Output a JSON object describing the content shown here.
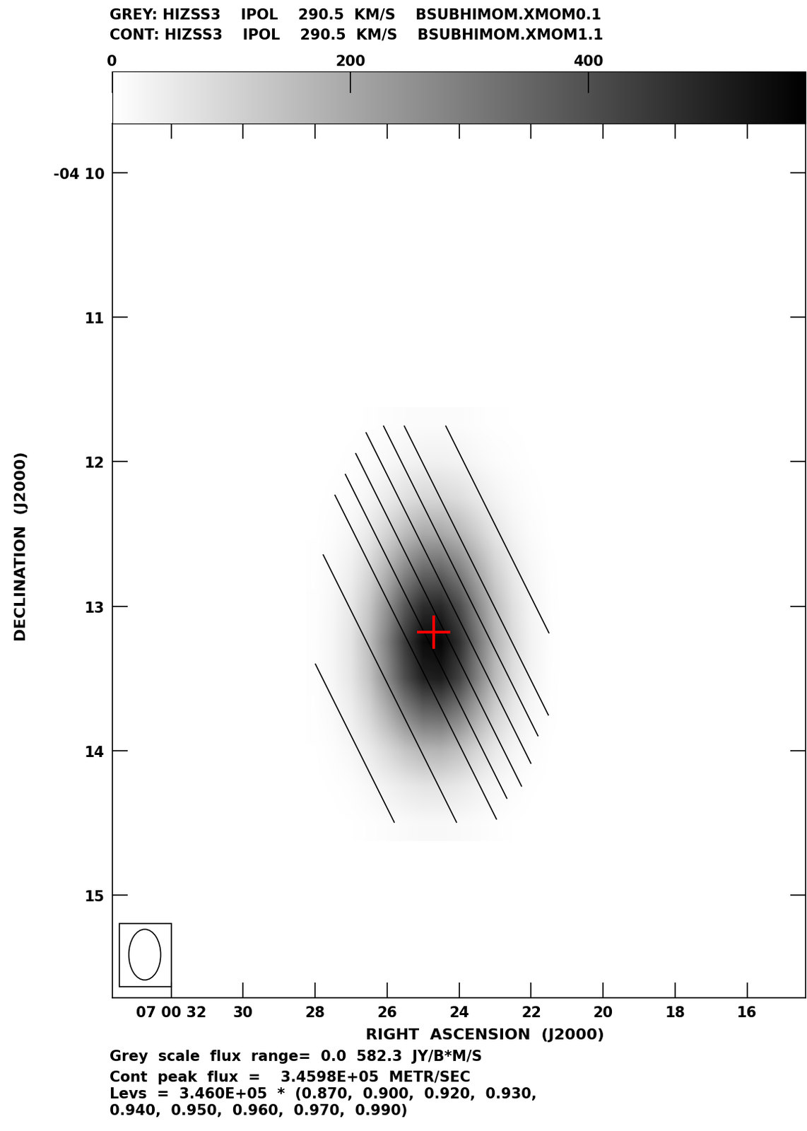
{
  "chart_data": {
    "type": "image_contour",
    "header": [
      "GREY: HIZSS3    IPOL    290.5  KM/S    BSUBHIMOM.XMOM0.1",
      "CONT: HIZSS3    IPOL    290.5  KM/S    BSUBHIMOM.XMOM1.1"
    ],
    "xlabel": "RIGHT  ASCENSION  (J2000)",
    "ylabel": "DECLINATION  (J2000)",
    "xlim": [
      33.64,
      14.38
    ],
    "ylim": [
      15.71,
      9.66
    ],
    "xticks": [
      {
        "value": 32,
        "label": "07 00 32"
      },
      30,
      28,
      26,
      24,
      22,
      20,
      18,
      16
    ],
    "yticks": [
      {
        "value": 10,
        "label": "-04 10"
      },
      11,
      12,
      13,
      14,
      15
    ],
    "grid": false,
    "x": [
      28,
      27.5,
      27,
      26.5,
      26,
      25.5,
      25,
      24.5,
      24,
      23.5,
      23,
      22.5,
      22,
      21.5,
      21
    ],
    "y": [
      11.75,
      12,
      12.25,
      12.5,
      12.75,
      13,
      13.25,
      13.5,
      13.75,
      14,
      14.25,
      14.5
    ],
    "grey": {
      "color": "gray_r",
      "cells": [
        [
          0,
          0,
          1,
          3,
          6,
          9,
          11,
          11,
          10,
          6,
          3,
          2,
          1,
          0,
          0
        ],
        [
          0,
          1,
          4,
          9,
          17,
          27,
          33,
          34,
          29,
          19,
          10,
          5,
          2,
          0,
          0
        ],
        [
          1,
          4,
          10,
          24,
          46,
          71,
          89,
          91,
          76,
          51,
          28,
          13,
          5,
          1,
          0
        ],
        [
          2,
          8,
          22,
          53,
          102,
          156,
          195,
          199,
          166,
          112,
          61,
          28,
          10,
          2,
          0
        ],
        [
          4,
          14,
          39,
          92,
          177,
          272,
          340,
          347,
          290,
          195,
          106,
          50,
          18,
          4,
          0
        ],
        [
          5,
          20,
          55,
          130,
          249,
          384,
          479,
          489,
          409,
          274,
          150,
          70,
          25,
          5,
          0
        ],
        [
          6,
          23,
          64,
          151,
          290,
          447,
          557,
          568,
          476,
          319,
          174,
          81,
          29,
          6,
          0
        ],
        [
          5,
          21,
          58,
          137,
          264,
          406,
          507,
          517,
          433,
          290,
          158,
          74,
          26,
          5,
          0
        ],
        [
          4,
          14,
          39,
          92,
          177,
          272,
          340,
          347,
          290,
          195,
          106,
          50,
          18,
          4,
          0
        ],
        [
          2,
          7,
          19,
          45,
          87,
          134,
          167,
          171,
          143,
          96,
          52,
          24,
          9,
          2,
          0
        ],
        [
          1,
          3,
          7,
          17,
          32,
          49,
          61,
          63,
          52,
          35,
          19,
          9,
          3,
          1,
          0
        ],
        [
          0,
          1,
          2,
          5,
          9,
          13,
          17,
          17,
          14,
          10,
          5,
          2,
          1,
          0,
          0
        ]
      ],
      "colorbar": {
        "range": [
          0,
          582.3
        ],
        "ticks": [
          0,
          200,
          400
        ]
      }
    },
    "contours": {
      "color": "black",
      "levels": [
        301020,
        311400,
        318320,
        321780,
        325240,
        328700,
        332160,
        335620,
        342540
      ],
      "cells": [
        [
          null,
          null,
          null,
          329800,
          332800,
          335800,
          338800,
          341800,
          344800,
          345500,
          345900,
          null,
          null,
          null,
          null
        ],
        [
          null,
          null,
          323800,
          326800,
          329800,
          332800,
          335800,
          338800,
          341800,
          344800,
          345500,
          345900,
          null,
          null,
          null
        ],
        [
          null,
          317800,
          320800,
          323800,
          326800,
          329800,
          332800,
          335800,
          338800,
          341800,
          344800,
          345500,
          345900,
          null,
          null
        ],
        [
          null,
          314800,
          317800,
          320800,
          323800,
          326800,
          329800,
          332800,
          335800,
          338800,
          341800,
          344800,
          345500,
          null,
          null
        ],
        [
          308800,
          311800,
          314800,
          317800,
          320800,
          323800,
          326800,
          329800,
          332800,
          335800,
          338800,
          341800,
          344800,
          345500,
          null
        ],
        [
          305800,
          308800,
          311800,
          314800,
          317800,
          320800,
          323800,
          326800,
          329800,
          332800,
          335800,
          338800,
          341800,
          344800,
          null
        ],
        [
          302800,
          305800,
          308800,
          311800,
          314800,
          317800,
          320800,
          323800,
          326800,
          329800,
          332800,
          335800,
          338800,
          341800,
          null
        ],
        [
          299800,
          302800,
          305800,
          308800,
          311800,
          314800,
          317800,
          320800,
          323800,
          326800,
          329800,
          332800,
          335800,
          338800,
          null
        ],
        [
          296800,
          299800,
          302800,
          305800,
          308800,
          311800,
          314800,
          317800,
          320800,
          323800,
          326800,
          329800,
          332800,
          335800,
          null
        ],
        [
          null,
          296800,
          299800,
          302800,
          305800,
          308800,
          311800,
          314800,
          317800,
          320800,
          323800,
          326800,
          329800,
          null,
          null
        ],
        [
          null,
          293800,
          296800,
          299800,
          302800,
          305800,
          308800,
          311800,
          314800,
          317800,
          320800,
          323800,
          326800,
          null,
          null
        ],
        [
          null,
          null,
          null,
          296800,
          299800,
          302800,
          305800,
          308800,
          311800,
          314800,
          317800,
          null,
          null,
          null,
          null
        ]
      ]
    },
    "markers": [
      {
        "x": 24.7,
        "y": 13.18,
        "color": "red",
        "marker": "+"
      }
    ],
    "annotations": [
      "Grey  scale  flux  range=  0.0  582.3  JY/B*M/S",
      "Cont  peak  flux  =    3.4598E+05  METR/SEC",
      "Levs  =  3.460E+05  *  (0.870,  0.900,  0.920,  0.930,\n0.940,  0.950,  0.960,  0.970,  0.990)"
    ]
  }
}
